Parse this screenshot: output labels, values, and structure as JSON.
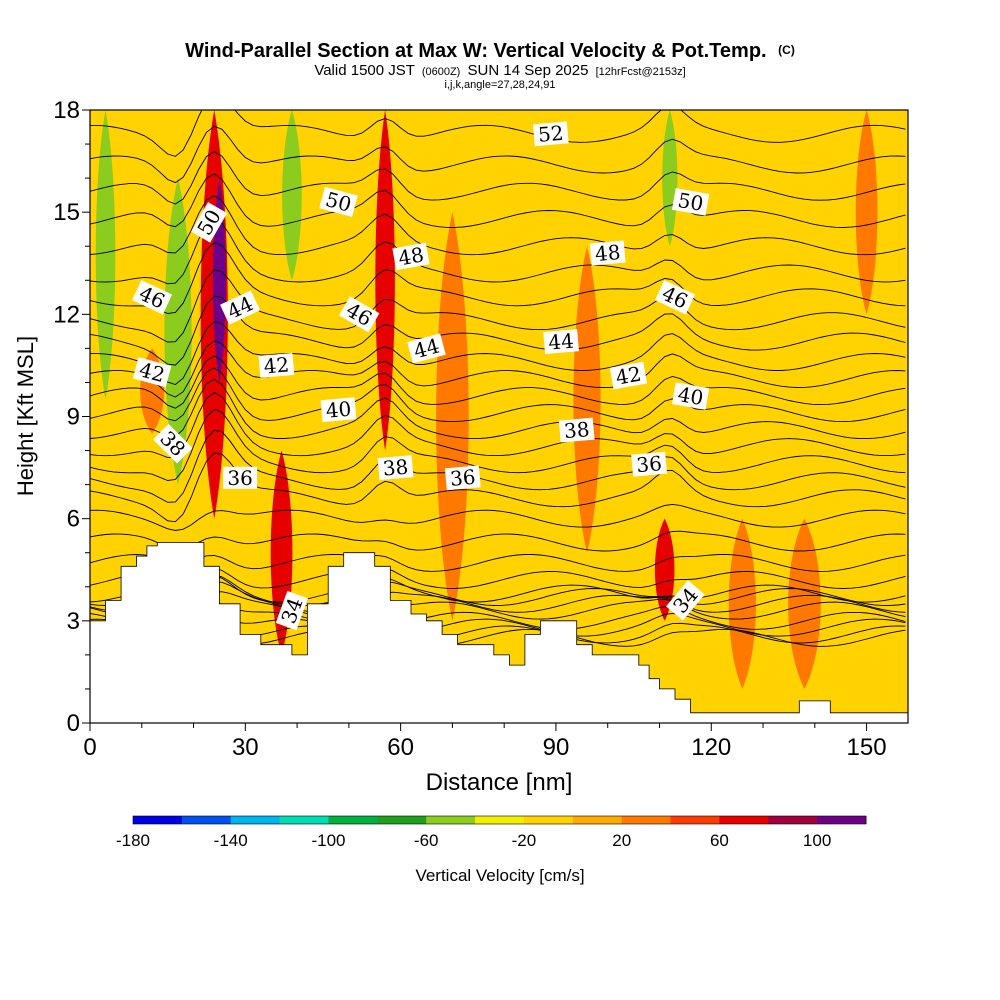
{
  "chart_data": {
    "type": "contour-cross-section",
    "title": "Wind-Parallel Section at Max W: Vertical Velocity & Pot.Temp.",
    "title_mark": "(C)",
    "subtitle_parts": [
      "Valid 1500 JST",
      "(0600Z)",
      "SUN 14 Sep 2025",
      "[12hrFcst@2153z]"
    ],
    "subtitle2": "i,j,k,angle=27,28,24,91",
    "xlabel": "Distance [nm]",
    "ylabel": "Height [Kft MSL]",
    "xlim": [
      0,
      158
    ],
    "ylim": [
      0,
      18
    ],
    "xticks": [
      0,
      30,
      60,
      90,
      120,
      150
    ],
    "yticks": [
      0,
      3,
      6,
      9,
      12,
      15,
      18
    ],
    "colorbar": {
      "label": "Vertical Velocity [cm/s]",
      "range": [
        -180,
        120
      ],
      "step": 20,
      "tick_labels": [
        "-180",
        "-140",
        "-100",
        "-60",
        "-20",
        "20",
        "60",
        "100"
      ],
      "colors": [
        "#0000e6",
        "#0050ee",
        "#00b4f0",
        "#00dcb4",
        "#00b040",
        "#1ea01e",
        "#8ccc1e",
        "#f0f000",
        "#ffd200",
        "#ffaa00",
        "#ff7800",
        "#ff3c00",
        "#e60000",
        "#a00040",
        "#6e0087"
      ]
    },
    "background_color": "#ffd200",
    "vertical_velocity_bands": [
      {
        "x": 3,
        "half_width": 1.8,
        "from": 9.5,
        "to": 18,
        "value": -60
      },
      {
        "x": 12,
        "half_width": 2.2,
        "from": 8.5,
        "to": 11,
        "value": 20
      },
      {
        "x": 17,
        "half_width": 2.5,
        "from": 7,
        "to": 16,
        "value": -60
      },
      {
        "x": 24,
        "half_width": 2.5,
        "from": 6,
        "to": 18,
        "value": 60
      },
      {
        "x": 25,
        "half_width": 1.2,
        "from": 10,
        "to": 16,
        "value": 100
      },
      {
        "x": 37,
        "half_width": 2,
        "from": 2,
        "to": 8,
        "value": 60
      },
      {
        "x": 39,
        "half_width": 1.8,
        "from": 13,
        "to": 18,
        "value": -60
      },
      {
        "x": 57,
        "half_width": 1.8,
        "from": 8,
        "to": 18,
        "value": 60
      },
      {
        "x": 70,
        "half_width": 3,
        "from": 3,
        "to": 15,
        "value": 20
      },
      {
        "x": 89,
        "half_width": 3,
        "from": 3.2,
        "to": 4.8,
        "value": -20
      },
      {
        "x": 96,
        "half_width": 2.5,
        "from": 5,
        "to": 14,
        "value": 20
      },
      {
        "x": 112,
        "half_width": 1.4,
        "from": 14,
        "to": 18,
        "value": -60
      },
      {
        "x": 111,
        "half_width": 1.8,
        "from": 3,
        "to": 6,
        "value": 60
      },
      {
        "x": 126,
        "half_width": 2.5,
        "from": 1,
        "to": 6,
        "value": 20
      },
      {
        "x": 138,
        "half_width": 3,
        "from": 1,
        "to": 6,
        "value": 20
      },
      {
        "x": 150,
        "half_width": 2,
        "from": 12,
        "to": 18,
        "value": 20
      }
    ],
    "terrain": [
      [
        0,
        3
      ],
      [
        3,
        3
      ],
      [
        3,
        3.6
      ],
      [
        6,
        3.6
      ],
      [
        6,
        4.6
      ],
      [
        9,
        4.6
      ],
      [
        9,
        4.9
      ],
      [
        11,
        4.9
      ],
      [
        11,
        5.2
      ],
      [
        13,
        5.2
      ],
      [
        13,
        5.3
      ],
      [
        22,
        5.3
      ],
      [
        22,
        4.6
      ],
      [
        25,
        4.6
      ],
      [
        25,
        3.5
      ],
      [
        29,
        3.5
      ],
      [
        29,
        2.6
      ],
      [
        33,
        2.6
      ],
      [
        33,
        2.3
      ],
      [
        39,
        2.3
      ],
      [
        39,
        2
      ],
      [
        42,
        2
      ],
      [
        42,
        3.5
      ],
      [
        46,
        3.5
      ],
      [
        46,
        4.6
      ],
      [
        49,
        4.6
      ],
      [
        49,
        5
      ],
      [
        55,
        5
      ],
      [
        55,
        4.6
      ],
      [
        58,
        4.6
      ],
      [
        58,
        3.6
      ],
      [
        62,
        3.6
      ],
      [
        62,
        3.2
      ],
      [
        65,
        3.2
      ],
      [
        65,
        3
      ],
      [
        68,
        3
      ],
      [
        68,
        2.6
      ],
      [
        71,
        2.6
      ],
      [
        71,
        2.3
      ],
      [
        78,
        2.3
      ],
      [
        78,
        2
      ],
      [
        81,
        2
      ],
      [
        81,
        1.7
      ],
      [
        84,
        1.7
      ],
      [
        84,
        2.6
      ],
      [
        87,
        2.6
      ],
      [
        87,
        3
      ],
      [
        94,
        3
      ],
      [
        94,
        2.3
      ],
      [
        97,
        2.3
      ],
      [
        97,
        2
      ],
      [
        106,
        2
      ],
      [
        106,
        1.7
      ],
      [
        108,
        1.7
      ],
      [
        108,
        1.3
      ],
      [
        110,
        1.3
      ],
      [
        110,
        1
      ],
      [
        113,
        1
      ],
      [
        113,
        0.7
      ],
      [
        116,
        0.7
      ],
      [
        116,
        0.3
      ],
      [
        137,
        0.3
      ],
      [
        137,
        0.65
      ],
      [
        143,
        0.65
      ],
      [
        143,
        0.3
      ],
      [
        158,
        0.3
      ]
    ],
    "isentrope_base": [
      2.5,
      2.6,
      2.8,
      3.0,
      3.3,
      3.5,
      3.7,
      3.8,
      4.2,
      4.7,
      5.3,
      6.0,
      6.6,
      7.1,
      7.6,
      8.1,
      8.6,
      9.1,
      9.6,
      10.1,
      10.6,
      11.2,
      11.8,
      12.5,
      13.2,
      14.0,
      14.8,
      15.6,
      16.4,
      17.3
    ],
    "contour_labels": [
      {
        "text": "52",
        "x": 89,
        "y": 17.3,
        "angle": -5
      },
      {
        "text": "50",
        "x": 23,
        "y": 14.7,
        "angle": -60
      },
      {
        "text": "50",
        "x": 48,
        "y": 15.3,
        "angle": 15
      },
      {
        "text": "50",
        "x": 116,
        "y": 15.3,
        "angle": 10
      },
      {
        "text": "48",
        "x": 62,
        "y": 13.7,
        "angle": -10
      },
      {
        "text": "48",
        "x": 100,
        "y": 13.8,
        "angle": -5
      },
      {
        "text": "46",
        "x": 12,
        "y": 12.5,
        "angle": 25
      },
      {
        "text": "46",
        "x": 52,
        "y": 12.0,
        "angle": 30
      },
      {
        "text": "46",
        "x": 113,
        "y": 12.5,
        "angle": 25
      },
      {
        "text": "44",
        "x": 29,
        "y": 12.2,
        "angle": -25
      },
      {
        "text": "44",
        "x": 65,
        "y": 11.0,
        "angle": -15
      },
      {
        "text": "44",
        "x": 91,
        "y": 11.2,
        "angle": -5
      },
      {
        "text": "42",
        "x": 12,
        "y": 10.3,
        "angle": 15
      },
      {
        "text": "42",
        "x": 36,
        "y": 10.5,
        "angle": -5
      },
      {
        "text": "42",
        "x": 104,
        "y": 10.2,
        "angle": -10
      },
      {
        "text": "40",
        "x": 48,
        "y": 9.2,
        "angle": -5
      },
      {
        "text": "40",
        "x": 116,
        "y": 9.6,
        "angle": 10
      },
      {
        "text": "38",
        "x": 16,
        "y": 8.2,
        "angle": 45
      },
      {
        "text": "38",
        "x": 59,
        "y": 7.5,
        "angle": -5
      },
      {
        "text": "38",
        "x": 94,
        "y": 8.6,
        "angle": -5
      },
      {
        "text": "36",
        "x": 29,
        "y": 7.2,
        "angle": 0
      },
      {
        "text": "36",
        "x": 72,
        "y": 7.2,
        "angle": -5
      },
      {
        "text": "36",
        "x": 108,
        "y": 7.6,
        "angle": -5
      },
      {
        "text": "34",
        "x": 39,
        "y": 3.3,
        "angle": -70
      },
      {
        "text": "34",
        "x": 115,
        "y": 3.6,
        "angle": -50
      }
    ]
  }
}
